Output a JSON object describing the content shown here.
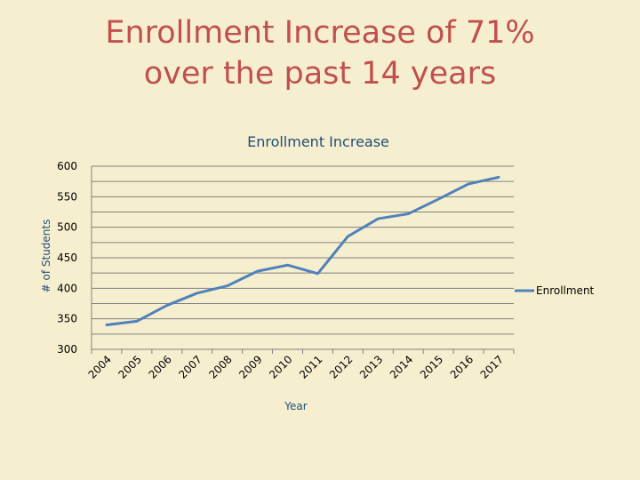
{
  "slide": {
    "title_line1": "Enrollment Increase of 71%",
    "title_line2": "over the past 14 years"
  },
  "colors": {
    "title": "#c0504d",
    "line": "#4f81bd",
    "grid": "#808080",
    "background": "#f6efcf"
  },
  "chart_data": {
    "type": "line",
    "title": "Enrollment Increase",
    "xlabel": "Year",
    "ylabel": "# of Students",
    "ylim": [
      300,
      600
    ],
    "yticks": [
      300,
      350,
      400,
      450,
      500,
      550,
      600
    ],
    "grid": true,
    "legend_position": "right",
    "categories": [
      "2004",
      "2005",
      "2006",
      "2007",
      "2008",
      "2009",
      "2010",
      "2011",
      "2012",
      "2013",
      "2014",
      "2015",
      "2016",
      "2017"
    ],
    "series": [
      {
        "name": "Enrollment",
        "values": [
          340,
          346,
          372,
          392,
          404,
          428,
          438,
          424,
          485,
          514,
          522,
          546,
          571,
          582
        ]
      }
    ]
  }
}
